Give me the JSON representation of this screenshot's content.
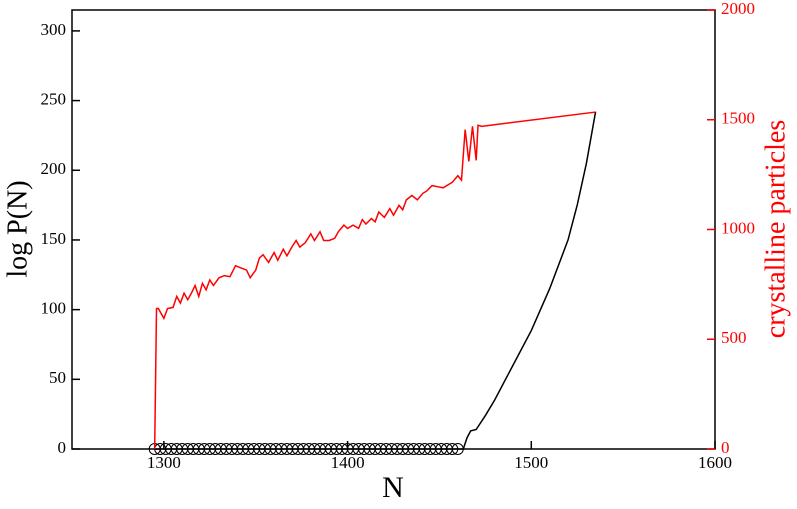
{
  "chart_data": {
    "type": "line",
    "xlabel": "N",
    "ylabel": "log P(N)",
    "y2label": "crystalline particles",
    "xlim": [
      1250,
      1600
    ],
    "xticks": [
      1300,
      1400,
      1500,
      1600
    ],
    "ylim": [
      0,
      315
    ],
    "yticks": [
      0,
      50,
      100,
      150,
      200,
      250,
      300
    ],
    "y2lim": [
      0,
      2000
    ],
    "y2ticks": [
      0,
      500,
      1000,
      1500,
      2000
    ],
    "y2color": "#ff0000",
    "series": [
      {
        "color": "#000000",
        "marker": "circle",
        "x": [
          1295,
          1298,
          1301,
          1304,
          1307,
          1310,
          1313,
          1316,
          1319,
          1322,
          1325,
          1328,
          1331,
          1334,
          1337,
          1340,
          1343,
          1346,
          1349,
          1352,
          1355,
          1358,
          1361,
          1364,
          1367,
          1370,
          1373,
          1376,
          1379,
          1382,
          1385,
          1388,
          1391,
          1394,
          1397,
          1400,
          1403,
          1406,
          1409,
          1412,
          1415,
          1418,
          1421,
          1424,
          1427,
          1430,
          1433,
          1436,
          1439,
          1442,
          1445,
          1448,
          1451,
          1454,
          1457,
          1460
        ],
        "values": [
          0,
          0,
          0,
          0,
          0,
          0,
          0,
          0,
          0,
          0,
          0,
          0,
          0,
          0,
          0,
          0,
          0,
          0,
          0,
          0,
          0,
          0,
          0,
          0,
          0,
          0,
          0,
          0,
          0,
          0,
          0,
          0,
          0,
          0,
          0,
          0,
          0,
          0,
          0,
          0,
          0,
          0,
          0,
          0,
          0,
          0,
          0,
          0,
          0,
          0,
          0,
          0,
          0,
          0,
          0,
          0
        ]
      },
      {
        "color": "#000000",
        "x": [
          1460,
          1463,
          1465,
          1467,
          1470,
          1475,
          1480,
          1490,
          1500,
          1510,
          1520,
          1525,
          1530,
          1535
        ],
        "values": [
          0,
          0,
          8,
          13,
          14,
          24,
          35,
          60,
          85,
          115,
          150,
          175,
          205,
          242
        ]
      },
      {
        "color": "#ff0000",
        "axis": "y2",
        "x": [
          1295,
          1296,
          1297,
          1300,
          1302,
          1305,
          1307,
          1309,
          1311,
          1313,
          1315,
          1317,
          1319,
          1321,
          1323,
          1325,
          1327,
          1330,
          1333,
          1336,
          1339,
          1342,
          1345,
          1347,
          1350,
          1352,
          1354,
          1357,
          1360,
          1362,
          1365,
          1367,
          1370,
          1372,
          1374,
          1377,
          1380,
          1382,
          1385,
          1387,
          1390,
          1393,
          1395,
          1398,
          1400,
          1403,
          1406,
          1408,
          1410,
          1413,
          1415,
          1417,
          1420,
          1423,
          1425,
          1428,
          1430,
          1432,
          1435,
          1438,
          1441,
          1443,
          1446,
          1449,
          1452,
          1455,
          1457,
          1460,
          1462,
          1464,
          1466,
          1468,
          1470,
          1471,
          1473,
          1535
        ],
        "values": [
          0,
          640,
          640,
          595,
          640,
          645,
          695,
          665,
          710,
          680,
          710,
          745,
          695,
          755,
          725,
          770,
          745,
          780,
          790,
          785,
          835,
          825,
          815,
          780,
          815,
          870,
          885,
          850,
          895,
          860,
          910,
          880,
          925,
          950,
          920,
          940,
          980,
          950,
          990,
          950,
          950,
          960,
          990,
          1020,
          1005,
          1020,
          1005,
          1045,
          1025,
          1050,
          1035,
          1080,
          1055,
          1095,
          1065,
          1110,
          1090,
          1135,
          1155,
          1135,
          1165,
          1175,
          1200,
          1195,
          1190,
          1205,
          1215,
          1245,
          1225,
          1455,
          1310,
          1470,
          1315,
          1475,
          1470,
          1535
        ]
      }
    ]
  }
}
